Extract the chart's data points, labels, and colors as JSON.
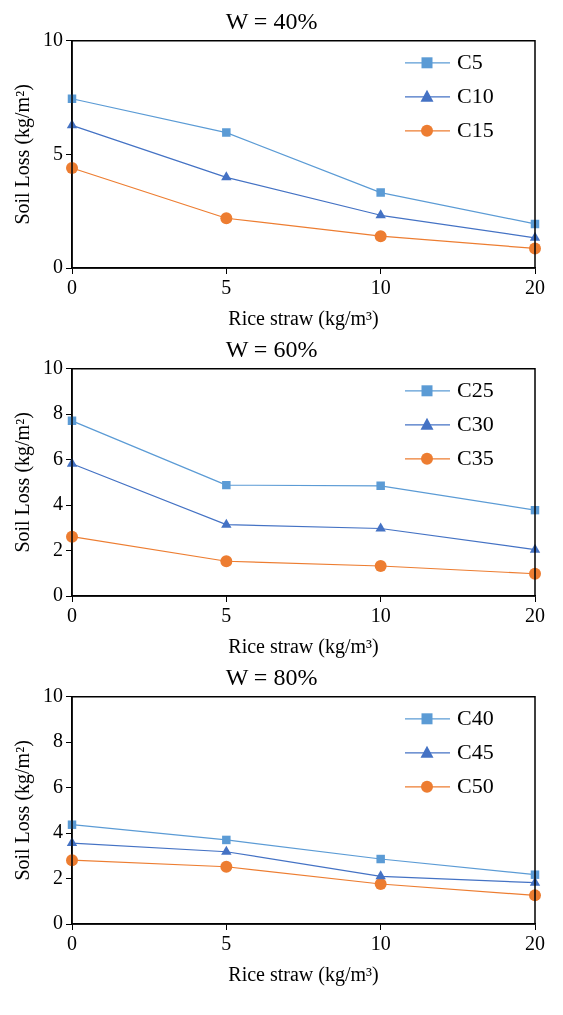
{
  "chart_data": [
    {
      "type": "line",
      "title": "W = 40%",
      "xlabel": "Rice straw (kg/m³)",
      "ylabel": "Soil Loss (kg/m²)",
      "categories": [
        "0",
        "5",
        "10",
        "20"
      ],
      "ylim": [
        0,
        10
      ],
      "yticks": [
        0,
        5,
        10
      ],
      "legend": "top right",
      "grid": false,
      "series": [
        {
          "name": "C5",
          "color": "#5b9bd5",
          "marker": "square",
          "values": [
            7.45,
            5.96,
            3.32,
            1.94
          ]
        },
        {
          "name": "C10",
          "color": "#4472c4",
          "marker": "triangle",
          "values": [
            6.28,
            3.99,
            2.32,
            1.33
          ]
        },
        {
          "name": "C15",
          "color": "#ed7d31",
          "marker": "circle",
          "values": [
            4.4,
            2.19,
            1.4,
            0.86
          ]
        }
      ]
    },
    {
      "type": "line",
      "title": "W = 60%",
      "xlabel": "Rice straw (kg/m³)",
      "ylabel": "Soil Loss (kg/m²)",
      "categories": [
        "0",
        "5",
        "10",
        "20"
      ],
      "ylim": [
        0,
        10
      ],
      "yticks": [
        0,
        2,
        4,
        6,
        8,
        10
      ],
      "legend": "top right",
      "grid": false,
      "series": [
        {
          "name": "C25",
          "color": "#5b9bd5",
          "marker": "square",
          "values": [
            7.71,
            4.88,
            4.85,
            3.78
          ]
        },
        {
          "name": "C30",
          "color": "#4472c4",
          "marker": "triangle",
          "values": [
            5.82,
            3.14,
            2.97,
            2.04
          ]
        },
        {
          "name": "C35",
          "color": "#ed7d31",
          "marker": "circle",
          "values": [
            2.61,
            1.53,
            1.32,
            0.98
          ]
        }
      ]
    },
    {
      "type": "line",
      "title": "W = 80%",
      "xlabel": "Rice straw (kg/m³)",
      "ylabel": "Soil Loss (kg/m²)",
      "categories": [
        "0",
        "5",
        "10",
        "20"
      ],
      "ylim": [
        0,
        10
      ],
      "yticks": [
        0,
        2,
        4,
        6,
        8,
        10
      ],
      "legend": "top right",
      "grid": false,
      "series": [
        {
          "name": "C40",
          "color": "#5b9bd5",
          "marker": "square",
          "values": [
            4.37,
            3.7,
            2.86,
            2.17
          ]
        },
        {
          "name": "C45",
          "color": "#4472c4",
          "marker": "triangle",
          "values": [
            3.56,
            3.18,
            2.1,
            1.82
          ]
        },
        {
          "name": "C50",
          "color": "#ed7d31",
          "marker": "circle",
          "values": [
            2.81,
            2.52,
            1.76,
            1.26
          ]
        }
      ]
    }
  ]
}
